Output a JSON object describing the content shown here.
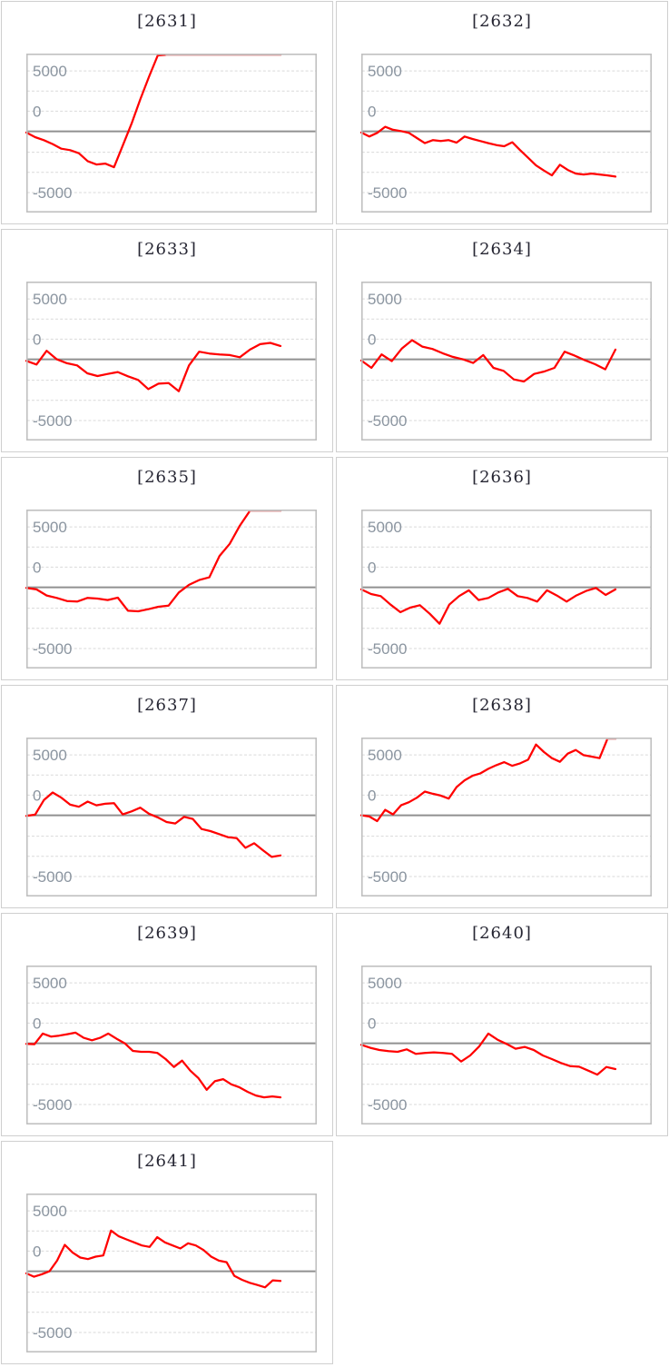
{
  "page": {
    "background": "#ffffff"
  },
  "style": {
    "line_color": "#ff0000",
    "clipped_line_color": "#e39b9b",
    "zero_line_color": "#909090",
    "grid_color": "#d9d9d9",
    "plot_border_color": "#c0c0c0",
    "tile_border_color": "#cfcfcf",
    "title_color": "#262633",
    "tick_color": "#8b95a0"
  },
  "axis": {
    "tick_labels": [
      "5000",
      "0",
      "-5000"
    ],
    "tick_values": [
      5000,
      0,
      -5000
    ],
    "grid": "dashed",
    "zero_line": "solid",
    "x_tick_labels_visible": false
  },
  "chart_data": [
    {
      "type": "line",
      "title": "[2631]",
      "ylabel": "",
      "xlabel": "",
      "ylim": [
        -6500,
        6400
      ],
      "values": [
        -100,
        -475,
        -725,
        -1050,
        -1425,
        -1550,
        -1800,
        -2450,
        -2725,
        -2650,
        -2950,
        -1175,
        625,
        2625,
        4500,
        6250,
        6600,
        6600,
        6600,
        6600,
        6600,
        6600,
        6600,
        6600,
        6600,
        6600,
        6600,
        6600,
        6600,
        6600
      ]
    },
    {
      "type": "line",
      "title": "[2632]",
      "ylabel": "",
      "xlabel": "",
      "ylim": [
        -6500,
        6400
      ],
      "values": [
        -100,
        -425,
        -125,
        375,
        125,
        25,
        -125,
        -550,
        -975,
        -725,
        -800,
        -725,
        -925,
        -425,
        -625,
        -800,
        -975,
        -1125,
        -1225,
        -900,
        -1550,
        -2175,
        -2800,
        -3225,
        -3625,
        -2750,
        -3175,
        -3475,
        -3550,
        -3475,
        -3550,
        -3625,
        -3725
      ]
    },
    {
      "type": "line",
      "title": "[2633]",
      "ylabel": "",
      "xlabel": "",
      "ylim": [
        -6500,
        6400
      ],
      "values": [
        -125,
        -425,
        700,
        0,
        -325,
        -500,
        -1150,
        -1375,
        -1200,
        -1050,
        -1400,
        -1700,
        -2450,
        -2000,
        -1950,
        -2625,
        -500,
        625,
        475,
        400,
        350,
        175,
        800,
        1250,
        1350,
        1100
      ]
    },
    {
      "type": "line",
      "title": "[2634]",
      "ylabel": "",
      "xlabel": "",
      "ylim": [
        -6500,
        6400
      ],
      "values": [
        -100,
        -700,
        400,
        -150,
        900,
        1575,
        1050,
        850,
        500,
        200,
        0,
        -300,
        350,
        -700,
        -950,
        -1650,
        -1825,
        -1200,
        -1000,
        -700,
        625,
        300,
        -75,
        -400,
        -825,
        800
      ]
    },
    {
      "type": "line",
      "title": "[2635]",
      "ylabel": "",
      "xlabel": "",
      "ylim": [
        -6500,
        6400
      ],
      "values": [
        -50,
        -175,
        -675,
        -875,
        -1125,
        -1175,
        -875,
        -925,
        -1050,
        -850,
        -1925,
        -1975,
        -1800,
        -1600,
        -1500,
        -425,
        200,
        600,
        825,
        2575,
        3575,
        5075,
        6325,
        6600,
        6600,
        6600
      ]
    },
    {
      "type": "line",
      "title": "[2636]",
      "ylabel": "",
      "xlabel": "",
      "ylim": [
        -6500,
        6400
      ],
      "values": [
        -175,
        -550,
        -725,
        -1425,
        -2050,
        -1675,
        -1475,
        -2175,
        -3000,
        -1425,
        -725,
        -250,
        -1050,
        -875,
        -425,
        -125,
        -725,
        -875,
        -1175,
        -250,
        -675,
        -1175,
        -675,
        -300,
        -50,
        -625,
        -175
      ]
    },
    {
      "type": "line",
      "title": "[2637]",
      "ylabel": "",
      "xlabel": "",
      "ylim": [
        -6500,
        6400
      ],
      "values": [
        -50,
        50,
        1250,
        1875,
        1450,
        875,
        700,
        1125,
        825,
        950,
        1000,
        75,
        325,
        625,
        125,
        -175,
        -550,
        -675,
        -125,
        -300,
        -1125,
        -1300,
        -1550,
        -1800,
        -1875,
        -2675,
        -2300,
        -2875,
        -3425,
        -3300
      ]
    },
    {
      "type": "line",
      "title": "[2638]",
      "ylabel": "",
      "xlabel": "",
      "ylim": [
        -6500,
        6400
      ],
      "values": [
        0,
        -100,
        -475,
        450,
        75,
        825,
        1075,
        1450,
        1950,
        1775,
        1625,
        1375,
        2325,
        2875,
        3250,
        3450,
        3825,
        4125,
        4375,
        4075,
        4275,
        4575,
        5825,
        5200,
        4700,
        4400,
        5075,
        5375,
        4950,
        4825,
        4700,
        6600,
        6600
      ]
    },
    {
      "type": "line",
      "title": "[2639]",
      "ylabel": "",
      "xlabel": "",
      "ylim": [
        -6500,
        6400
      ],
      "values": [
        -50,
        -75,
        800,
        550,
        625,
        750,
        875,
        450,
        250,
        450,
        800,
        375,
        0,
        -625,
        -700,
        -700,
        -800,
        -1300,
        -1950,
        -1425,
        -2250,
        -2875,
        -3825,
        -3125,
        -2950,
        -3375,
        -3625,
        -4000,
        -4300,
        -4450,
        -4375,
        -4450
      ]
    },
    {
      "type": "line",
      "title": "[2640]",
      "ylabel": "",
      "xlabel": "",
      "ylim": [
        -6500,
        6400
      ],
      "values": [
        -125,
        -375,
        -550,
        -650,
        -700,
        -500,
        -875,
        -800,
        -750,
        -800,
        -875,
        -1500,
        -1000,
        -250,
        800,
        300,
        -50,
        -450,
        -300,
        -550,
        -1000,
        -1300,
        -1625,
        -1875,
        -1925,
        -2250,
        -2575,
        -1950,
        -2125
      ]
    },
    {
      "type": "line",
      "title": "[2641]",
      "ylabel": "",
      "xlabel": "",
      "ylim": [
        -6500,
        6400
      ],
      "values": [
        -175,
        -450,
        -250,
        0,
        875,
        2175,
        1550,
        1125,
        1000,
        1200,
        1300,
        3350,
        2875,
        2625,
        2375,
        2125,
        2000,
        2800,
        2375,
        2125,
        1875,
        2300,
        2125,
        1750,
        1200,
        875,
        750,
        -375,
        -700,
        -950,
        -1125,
        -1325,
        -750,
        -800
      ]
    }
  ]
}
